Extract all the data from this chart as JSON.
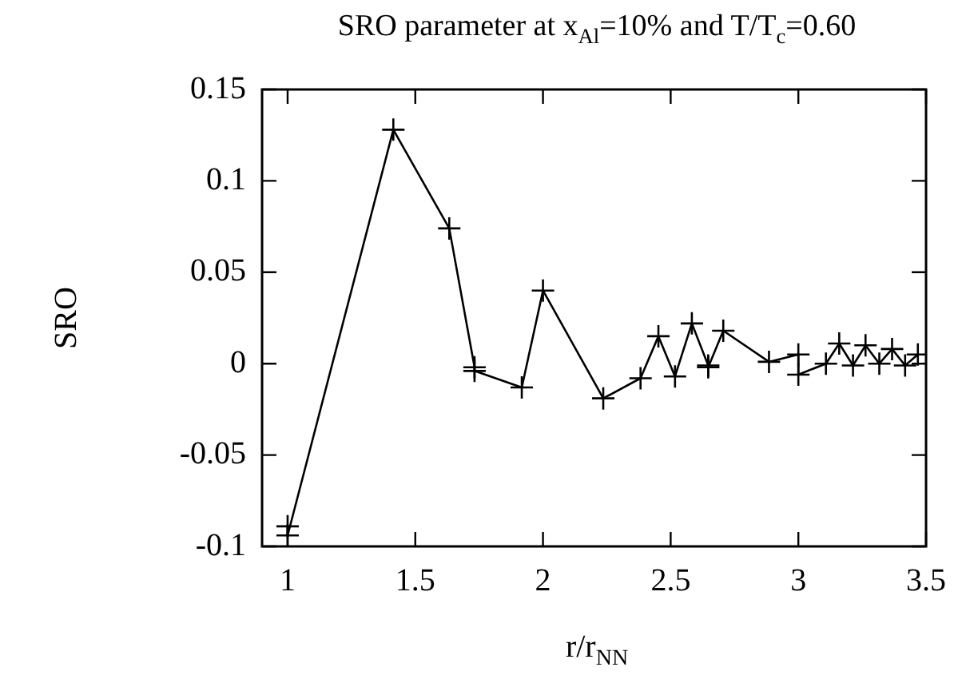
{
  "chart_data": {
    "type": "line",
    "title": "SRO parameter at x$_{Al}$=10% and T/T$_{c}$=0.60",
    "xlabel": "r/r$_{NN}$",
    "ylabel": "SRO",
    "x": [
      1,
      1,
      1.414,
      1.633,
      1.732,
      1.732,
      1.917,
      2,
      2.236,
      2.382,
      2.452,
      2.517,
      2.583,
      2.647,
      2.647,
      2.706,
      2.885,
      3,
      3,
      3.108,
      3.16,
      3.214,
      3.263,
      3.317,
      3.367,
      3.418,
      3.468
    ],
    "series": [
      {
        "color": "#000000",
        "values": [
          -0.089,
          -0.094,
          0.128,
          0.074,
          -0.002,
          -0.004,
          -0.013,
          0.04,
          -0.019,
          -0.008,
          0.015,
          -0.007,
          0.022,
          -0.001,
          -0.002,
          0.018,
          0.001,
          0.005,
          -0.006,
          0,
          0.011,
          -0.001,
          0.01,
          0,
          0.008,
          -0.001,
          0.005
        ]
      }
    ],
    "xlim": [
      0.9,
      3.5
    ],
    "xticks": [
      1,
      1.5,
      2,
      2.5,
      3,
      3.5
    ],
    "ylim": [
      -0.1,
      0.15
    ],
    "yticks": [
      -0.1,
      -0.05,
      0,
      0.05,
      0.1,
      0.15
    ],
    "grid": false,
    "legend": false,
    "marker": "cross",
    "line_style": "solid"
  }
}
